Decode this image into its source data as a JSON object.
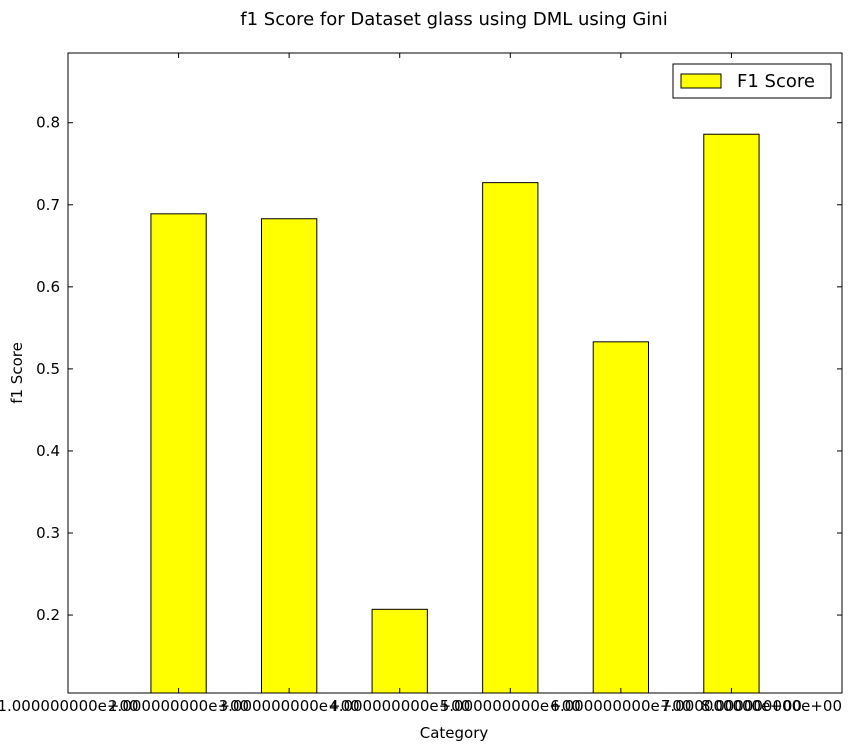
{
  "chart_data": {
    "type": "bar",
    "title": "f1 Score for Dataset glass using DML using Gini",
    "xlabel": "Category",
    "ylabel": "f1 Score",
    "ylim": [
      0.105,
      0.885
    ],
    "yticks": [
      "0.2",
      "0.3",
      "0.4",
      "0.5",
      "0.6",
      "0.7",
      "0.8"
    ],
    "ytick_values": [
      0.2,
      0.3,
      0.4,
      0.5,
      0.6,
      0.7,
      0.8
    ],
    "xlim": [
      1,
      8
    ],
    "xticks": [
      "1.000000000e+00",
      "2.000000000e+00",
      "3.000000000e+00",
      "4.000000000e+00",
      "5.000000000e+00",
      "6.000000000e+00",
      "7.000000000e+00",
      "8.000000000e+00"
    ],
    "xtick_values": [
      1,
      2,
      3,
      4,
      5,
      6,
      7,
      8
    ],
    "bar_width": 0.5,
    "series": [
      {
        "name": "F1 Score",
        "color": "#ffff00",
        "x": [
          1.75,
          2.75,
          3.75,
          4.75,
          5.75,
          6.75
        ],
        "values": [
          0.689,
          0.683,
          0.207,
          0.727,
          0.533,
          0.786
        ]
      }
    ],
    "legend_position": "top-right",
    "grid": false
  }
}
